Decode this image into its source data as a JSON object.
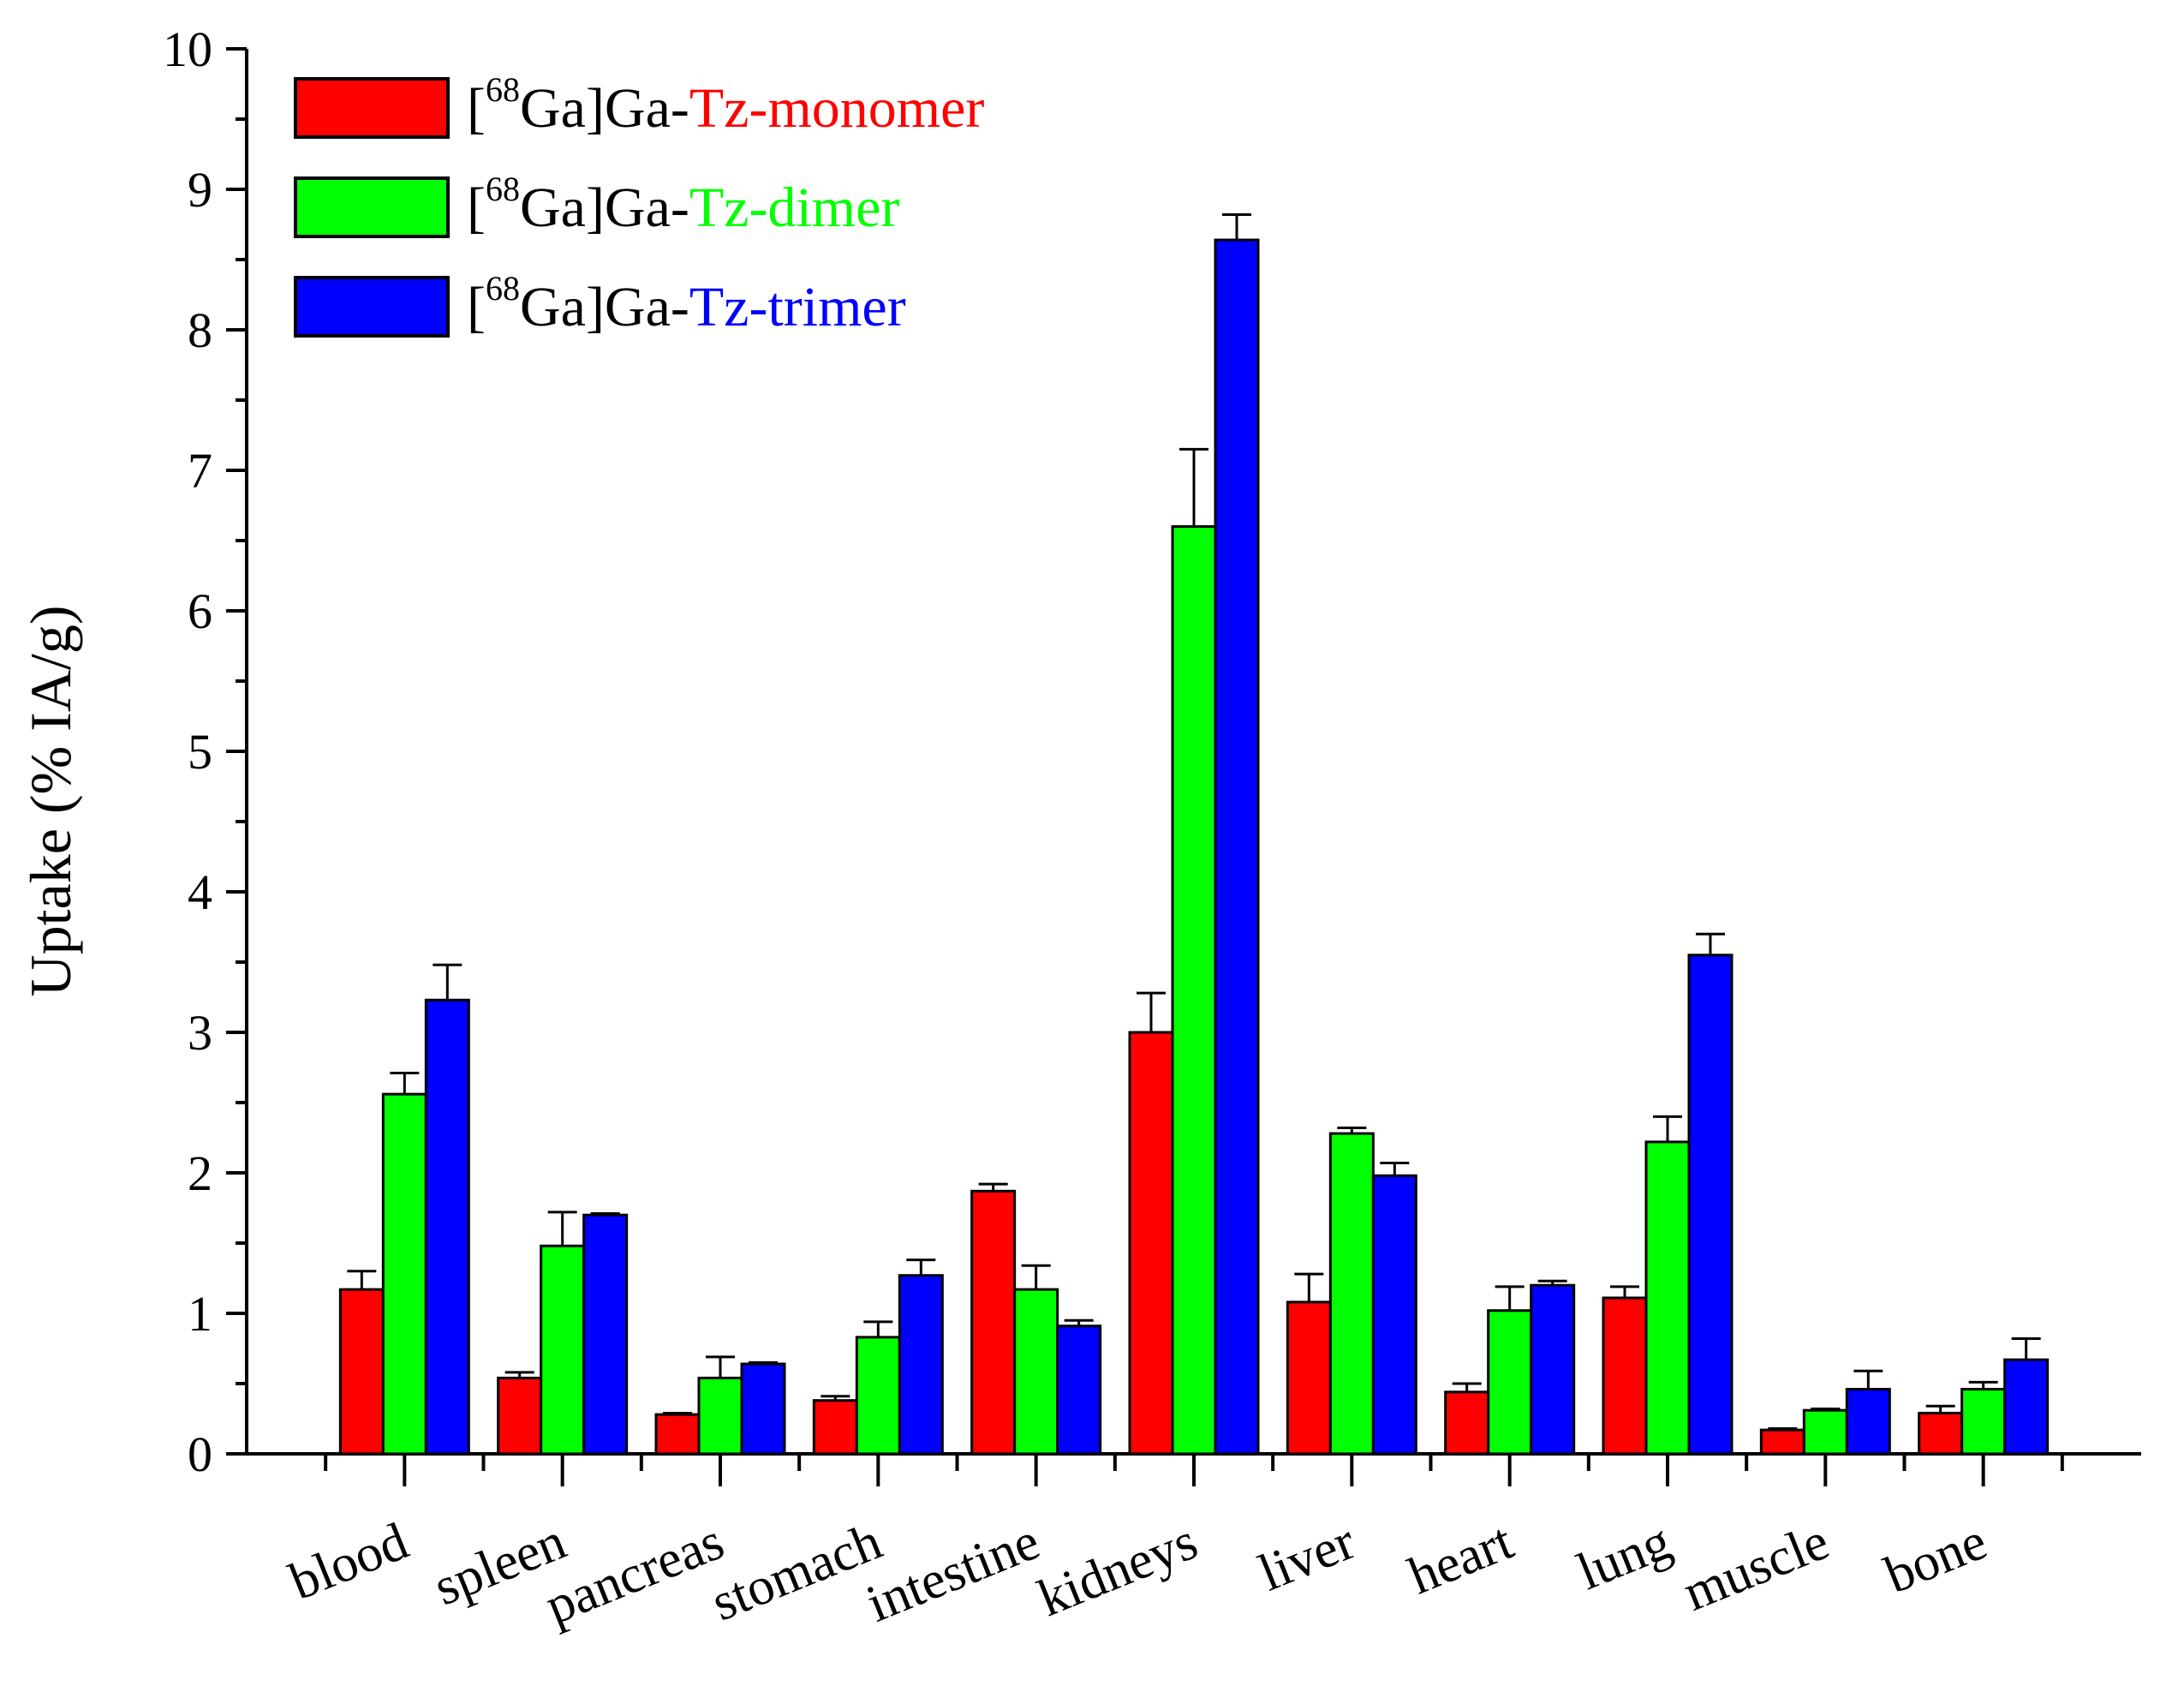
{
  "chart_data": {
    "type": "bar",
    "ylabel": "Uptake (% IA/g)",
    "ylim": [
      0,
      10
    ],
    "y_ticks": [
      "0",
      "1",
      "2",
      "3",
      "4",
      "5",
      "6",
      "7",
      "8",
      "9",
      "10"
    ],
    "categories": [
      "blood",
      "spleen",
      "pancreas",
      "stomach",
      "intestine",
      "kidneys",
      "liver",
      "heart",
      "lung",
      "muscle",
      "bone"
    ],
    "legend_position": "top-left",
    "series": [
      {
        "name_prefix": "[",
        "name_superscript": "68",
        "name_mid": "Ga]Ga-",
        "name_colored": "Tz-monomer",
        "color": "#ff0000",
        "values": [
          1.17,
          0.54,
          0.28,
          0.38,
          1.87,
          3.0,
          1.08,
          0.44,
          1.11,
          0.17,
          0.29
        ],
        "errors": [
          0.13,
          0.04,
          0.01,
          0.03,
          0.05,
          0.28,
          0.2,
          0.06,
          0.08,
          0.01,
          0.05
        ]
      },
      {
        "name_prefix": "[",
        "name_superscript": "68",
        "name_mid": "Ga]Ga-",
        "name_colored": "Tz-dimer",
        "color": "#00ff00",
        "values": [
          2.56,
          1.48,
          0.54,
          0.83,
          1.17,
          6.6,
          2.28,
          1.02,
          2.22,
          0.31,
          0.46
        ],
        "errors": [
          0.15,
          0.24,
          0.15,
          0.11,
          0.17,
          0.55,
          0.04,
          0.17,
          0.18,
          0.01,
          0.05
        ]
      },
      {
        "name_prefix": "[",
        "name_superscript": "68",
        "name_mid": "Ga]Ga-",
        "name_colored": "Tz-trimer",
        "color": "#0000ff",
        "values": [
          3.23,
          1.7,
          0.64,
          1.27,
          0.91,
          8.64,
          1.98,
          1.2,
          3.55,
          0.46,
          0.67
        ],
        "errors": [
          0.25,
          0.01,
          0.01,
          0.11,
          0.04,
          0.18,
          0.09,
          0.03,
          0.15,
          0.13,
          0.15
        ]
      }
    ]
  }
}
